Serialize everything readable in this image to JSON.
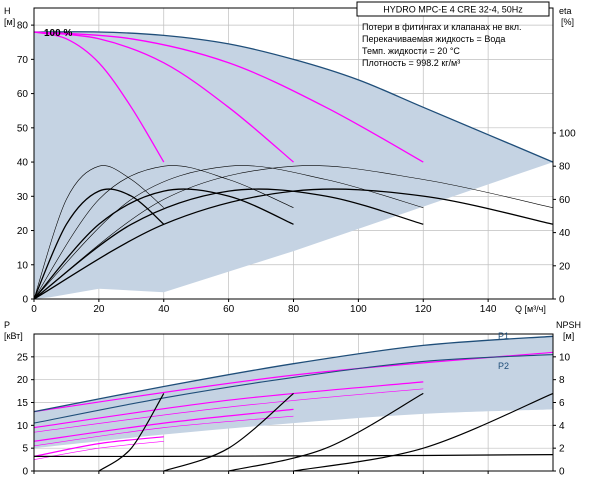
{
  "chart_data": [
    {
      "type": "line",
      "title": "HYDRO MPC-E 4 CRE 32-4, 50Hz",
      "annotations": [
        "Потери в фитингах и клапанах не вкл.",
        "Перекачиваемая жидкость = Вода",
        "Темп. жидкости = 20 °C",
        "Плотность = 998.2 кг/м³"
      ],
      "speed_label": "100 %",
      "xlabel": "Q [м³/ч]",
      "ylabel_left": "H",
      "ylabel_left_unit": "[м]",
      "ylabel_right": "eta",
      "ylabel_right_unit": "[%]",
      "xlim": [
        0,
        160
      ],
      "ylim_left": [
        0,
        85
      ],
      "ylim_right_ticks": [
        0,
        20,
        40,
        60,
        80,
        100
      ],
      "x_ticks": [
        0,
        20,
        40,
        60,
        80,
        100,
        120,
        140
      ],
      "y_ticks_left": [
        0,
        10,
        20,
        30,
        40,
        50,
        60,
        70,
        80
      ],
      "grid": true,
      "colors": {
        "envelope": "#c5d3e3",
        "envelope_edge": "#1f4e79",
        "qh_curve": "#ff00ff",
        "eta_curve": "#000000"
      },
      "envelope": {
        "x": [
          0,
          20,
          40,
          60,
          80,
          100,
          120,
          140,
          160
        ],
        "y": [
          78,
          78,
          77,
          74.5,
          70,
          64,
          56,
          48,
          40
        ]
      },
      "qh_curves": [
        {
          "x": [
            0,
            10,
            20,
            30,
            40
          ],
          "y": [
            78,
            76,
            69,
            56,
            40
          ]
        },
        {
          "x": [
            0,
            20,
            40,
            60,
            80
          ],
          "y": [
            78,
            76,
            69,
            56,
            40
          ]
        },
        {
          "x": [
            0,
            30,
            60,
            90,
            120
          ],
          "y": [
            78,
            76,
            69,
            56,
            40
          ]
        }
      ],
      "eta_curves_total": [
        {
          "x": [
            0,
            10,
            20,
            30,
            40
          ],
          "y": [
            0,
            45,
            65,
            62,
            45
          ]
        },
        {
          "x": [
            0,
            20,
            40,
            60,
            80
          ],
          "y": [
            0,
            45,
            65,
            62,
            45
          ]
        },
        {
          "x": [
            0,
            30,
            60,
            90,
            120
          ],
          "y": [
            0,
            45,
            65,
            62,
            45
          ]
        },
        {
          "x": [
            0,
            40,
            80,
            120,
            160
          ],
          "y": [
            0,
            45,
            65,
            62,
            45
          ]
        }
      ],
      "eta_curves_hydraulic": [
        {
          "x": [
            0,
            10,
            20,
            30,
            40
          ],
          "y": [
            0,
            60,
            80,
            72,
            55
          ]
        },
        {
          "x": [
            0,
            20,
            40,
            60,
            80
          ],
          "y": [
            0,
            60,
            80,
            72,
            55
          ]
        },
        {
          "x": [
            0,
            30,
            60,
            90,
            120
          ],
          "y": [
            0,
            60,
            80,
            72,
            55
          ]
        },
        {
          "x": [
            0,
            40,
            80,
            120,
            160
          ],
          "y": [
            0,
            60,
            80,
            72,
            55
          ]
        }
      ]
    },
    {
      "type": "line",
      "ylabel_left": "P",
      "ylabel_left_unit": "[кВт]",
      "ylabel_right": "NPSH",
      "ylabel_right_unit": "[м]",
      "xlim": [
        0,
        160
      ],
      "ylim_left": [
        0,
        30
      ],
      "ylim_right": [
        0,
        12
      ],
      "y_ticks_left": [
        0,
        5,
        10,
        15,
        20,
        25
      ],
      "y_ticks_right": [
        0,
        2,
        4,
        6,
        8,
        10
      ],
      "series_labels": [
        "P1",
        "P2"
      ],
      "p1": {
        "x": [
          0,
          40,
          80,
          120,
          160
        ],
        "y": [
          13,
          18.5,
          23.5,
          27.5,
          29.5
        ]
      },
      "p2": {
        "x": [
          0,
          40,
          80,
          120,
          160
        ],
        "y": [
          10.5,
          16,
          20.5,
          24,
          25.5
        ]
      },
      "p_lower": {
        "x": [
          0,
          40,
          80,
          120,
          160
        ],
        "y": [
          5,
          8,
          10.5,
          12.5,
          13.5
        ]
      },
      "power_curves": [
        {
          "x": [
            0,
            20,
            40
          ],
          "y": [
            3.2,
            6,
            7.5
          ]
        },
        {
          "x": [
            0,
            20,
            40
          ],
          "y": [
            2.5,
            5,
            6.5
          ]
        },
        {
          "x": [
            0,
            40,
            80
          ],
          "y": [
            6.5,
            10.5,
            13.5
          ]
        },
        {
          "x": [
            0,
            40,
            80
          ],
          "y": [
            5.5,
            9.5,
            12
          ]
        },
        {
          "x": [
            0,
            60,
            120
          ],
          "y": [
            9.5,
            15.5,
            19.5
          ]
        },
        {
          "x": [
            0,
            60,
            120
          ],
          "y": [
            8.5,
            14,
            18
          ]
        },
        {
          "x": [
            0,
            80,
            160
          ],
          "y": [
            13,
            21,
            26
          ]
        }
      ],
      "npsh_curves": [
        {
          "x": [
            20,
            30,
            40
          ],
          "y": [
            0,
            2,
            6.8
          ]
        },
        {
          "x": [
            40,
            60,
            80
          ],
          "y": [
            0,
            2,
            6.8
          ]
        },
        {
          "x": [
            60,
            90,
            120
          ],
          "y": [
            0,
            2,
            6.8
          ]
        },
        {
          "x": [
            80,
            120,
            160
          ],
          "y": [
            0,
            2,
            6.8
          ]
        }
      ],
      "npsh_min": {
        "x": [
          0,
          40,
          80,
          120,
          160
        ],
        "y": [
          3.2,
          3.2,
          3.3,
          3.4,
          3.6
        ]
      }
    }
  ]
}
